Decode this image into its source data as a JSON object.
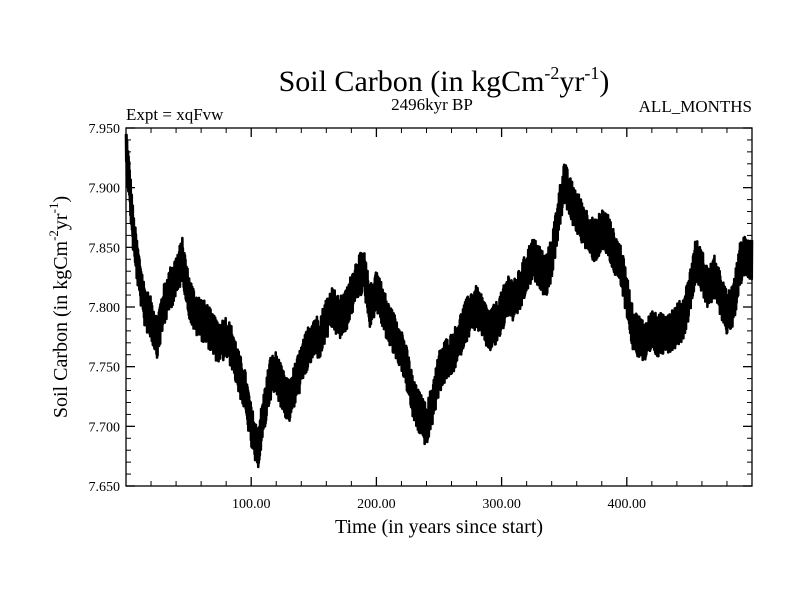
{
  "chart_data": {
    "type": "line",
    "title": "Soil Carbon (in kgCm",
    "title_sup1": "-2",
    "title_mid": "yr",
    "title_sup2": "-1",
    "title_end": ")",
    "subtitle_left": "Expt = xqFvw",
    "subtitle_center": "2496kyr BP",
    "subtitle_right": "ALL_MONTHS",
    "xlabel": "Time (in years since start)",
    "ylabel": "Soil Carbon (in kgCm",
    "ylabel_sup1": "-2",
    "ylabel_mid": "yr",
    "ylabel_sup2": "-1",
    "ylabel_end": ")",
    "xlim": [
      0,
      500
    ],
    "ylim": [
      7.65,
      7.95
    ],
    "x_ticks": [
      100,
      200,
      300,
      400
    ],
    "x_tick_labels": [
      "100.00",
      "200.00",
      "300.00",
      "400.00"
    ],
    "y_ticks": [
      7.65,
      7.7,
      7.75,
      7.8,
      7.85,
      7.9,
      7.95
    ],
    "y_tick_labels": [
      "7.650",
      "7.700",
      "7.750",
      "7.800",
      "7.850",
      "7.900",
      "7.950"
    ],
    "line_color": "#000000",
    "series": [
      {
        "name": "Soil Carbon",
        "x": [
          0,
          3,
          6,
          10,
          15,
          20,
          25,
          30,
          35,
          40,
          45,
          50,
          55,
          60,
          65,
          70,
          75,
          80,
          85,
          90,
          95,
          100,
          105,
          110,
          115,
          120,
          125,
          130,
          135,
          140,
          145,
          150,
          155,
          160,
          165,
          170,
          175,
          180,
          185,
          190,
          195,
          200,
          205,
          210,
          215,
          220,
          225,
          230,
          235,
          240,
          245,
          250,
          255,
          260,
          265,
          270,
          275,
          280,
          285,
          290,
          295,
          300,
          305,
          310,
          315,
          320,
          325,
          330,
          335,
          340,
          345,
          350,
          355,
          360,
          365,
          370,
          375,
          380,
          385,
          390,
          395,
          400,
          405,
          410,
          415,
          420,
          425,
          430,
          435,
          440,
          445,
          450,
          455,
          460,
          465,
          470,
          475,
          480,
          485,
          490,
          495,
          500
        ],
        "values": [
          7.935,
          7.9,
          7.86,
          7.83,
          7.8,
          7.79,
          7.775,
          7.8,
          7.815,
          7.825,
          7.84,
          7.81,
          7.795,
          7.79,
          7.785,
          7.775,
          7.77,
          7.775,
          7.765,
          7.745,
          7.73,
          7.7,
          7.68,
          7.71,
          7.74,
          7.745,
          7.73,
          7.72,
          7.735,
          7.75,
          7.765,
          7.775,
          7.775,
          7.79,
          7.8,
          7.79,
          7.795,
          7.81,
          7.825,
          7.83,
          7.8,
          7.815,
          7.8,
          7.785,
          7.775,
          7.765,
          7.745,
          7.72,
          7.71,
          7.7,
          7.72,
          7.745,
          7.755,
          7.76,
          7.77,
          7.785,
          7.795,
          7.8,
          7.79,
          7.78,
          7.785,
          7.795,
          7.81,
          7.805,
          7.815,
          7.83,
          7.84,
          7.835,
          7.825,
          7.84,
          7.875,
          7.905,
          7.89,
          7.88,
          7.87,
          7.86,
          7.855,
          7.865,
          7.86,
          7.845,
          7.835,
          7.81,
          7.78,
          7.775,
          7.77,
          7.78,
          7.775,
          7.78,
          7.78,
          7.785,
          7.79,
          7.81,
          7.84,
          7.83,
          7.815,
          7.825,
          7.81,
          7.795,
          7.8,
          7.835,
          7.845,
          7.84
        ]
      }
    ]
  }
}
